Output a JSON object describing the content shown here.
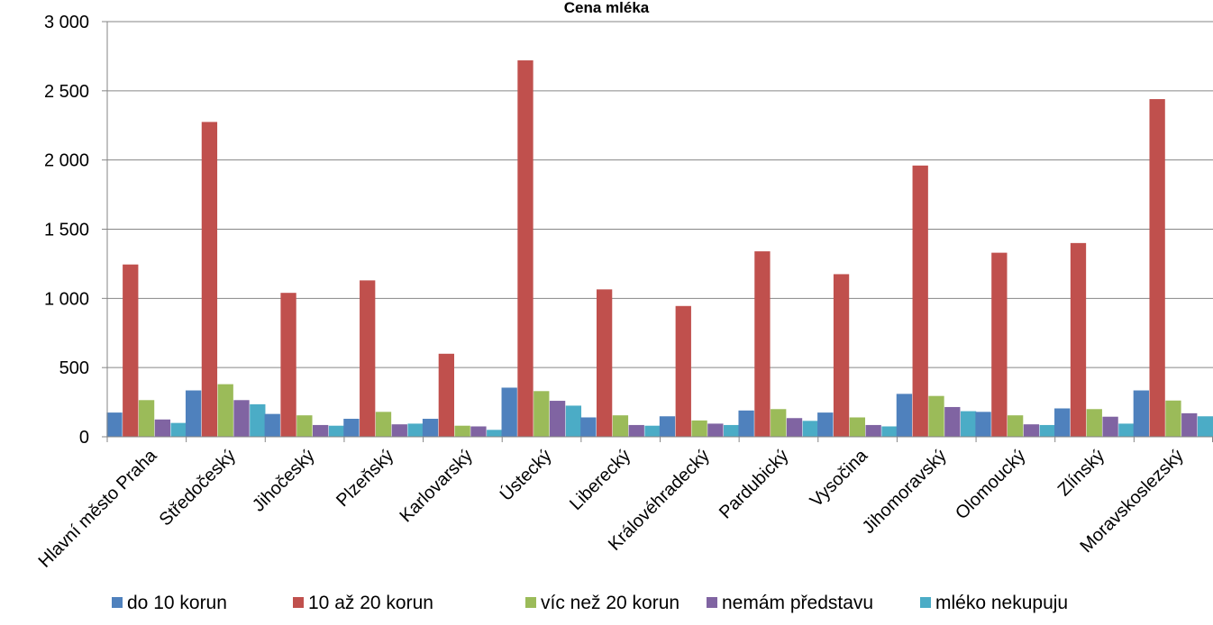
{
  "chart_data": {
    "type": "bar",
    "title": "Cena mléka",
    "xlabel": "",
    "ylabel": "",
    "ylim": [
      0,
      3000
    ],
    "yticks": [
      {
        "value": 0,
        "label": "0"
      },
      {
        "value": 500,
        "label": "500"
      },
      {
        "value": 1000,
        "label": "1 000"
      },
      {
        "value": 1500,
        "label": "1 500"
      },
      {
        "value": 2000,
        "label": "2 000"
      },
      {
        "value": 2500,
        "label": "2 500"
      },
      {
        "value": 3000,
        "label": "3 000"
      }
    ],
    "grid": true,
    "legend_position": "bottom",
    "categories": [
      "Hlavní město Praha",
      "Středočeský",
      "Jihočeský",
      "Plzeňský",
      "Karlovarský",
      "Ústecký",
      "Liberecký",
      "Královéhradecký",
      "Pardubický",
      "Vysočina",
      "Jihomoravský",
      "Olomoucký",
      "Zlínský",
      "Moravskoslezský"
    ],
    "series": [
      {
        "name": "do 10 korun",
        "color": "#4F81BD",
        "values": [
          175,
          335,
          165,
          130,
          130,
          355,
          140,
          148,
          190,
          175,
          310,
          180,
          205,
          335
        ]
      },
      {
        "name": "10 až 20 korun",
        "color": "#C0504D",
        "values": [
          1245,
          2275,
          1040,
          1130,
          600,
          2720,
          1065,
          945,
          1340,
          1175,
          1960,
          1330,
          1400,
          2440
        ]
      },
      {
        "name": "víc než 20 korun",
        "color": "#9BBB59",
        "values": [
          265,
          380,
          155,
          180,
          80,
          330,
          155,
          118,
          200,
          140,
          295,
          155,
          200,
          262
        ]
      },
      {
        "name": "nemám představu",
        "color": "#8064A2",
        "values": [
          125,
          265,
          85,
          90,
          75,
          260,
          85,
          95,
          135,
          85,
          215,
          90,
          145,
          170
        ]
      },
      {
        "name": "mléko nekupuju",
        "color": "#4BACC6",
        "values": [
          100,
          235,
          80,
          95,
          50,
          225,
          80,
          85,
          115,
          75,
          185,
          85,
          95,
          148
        ]
      }
    ]
  }
}
